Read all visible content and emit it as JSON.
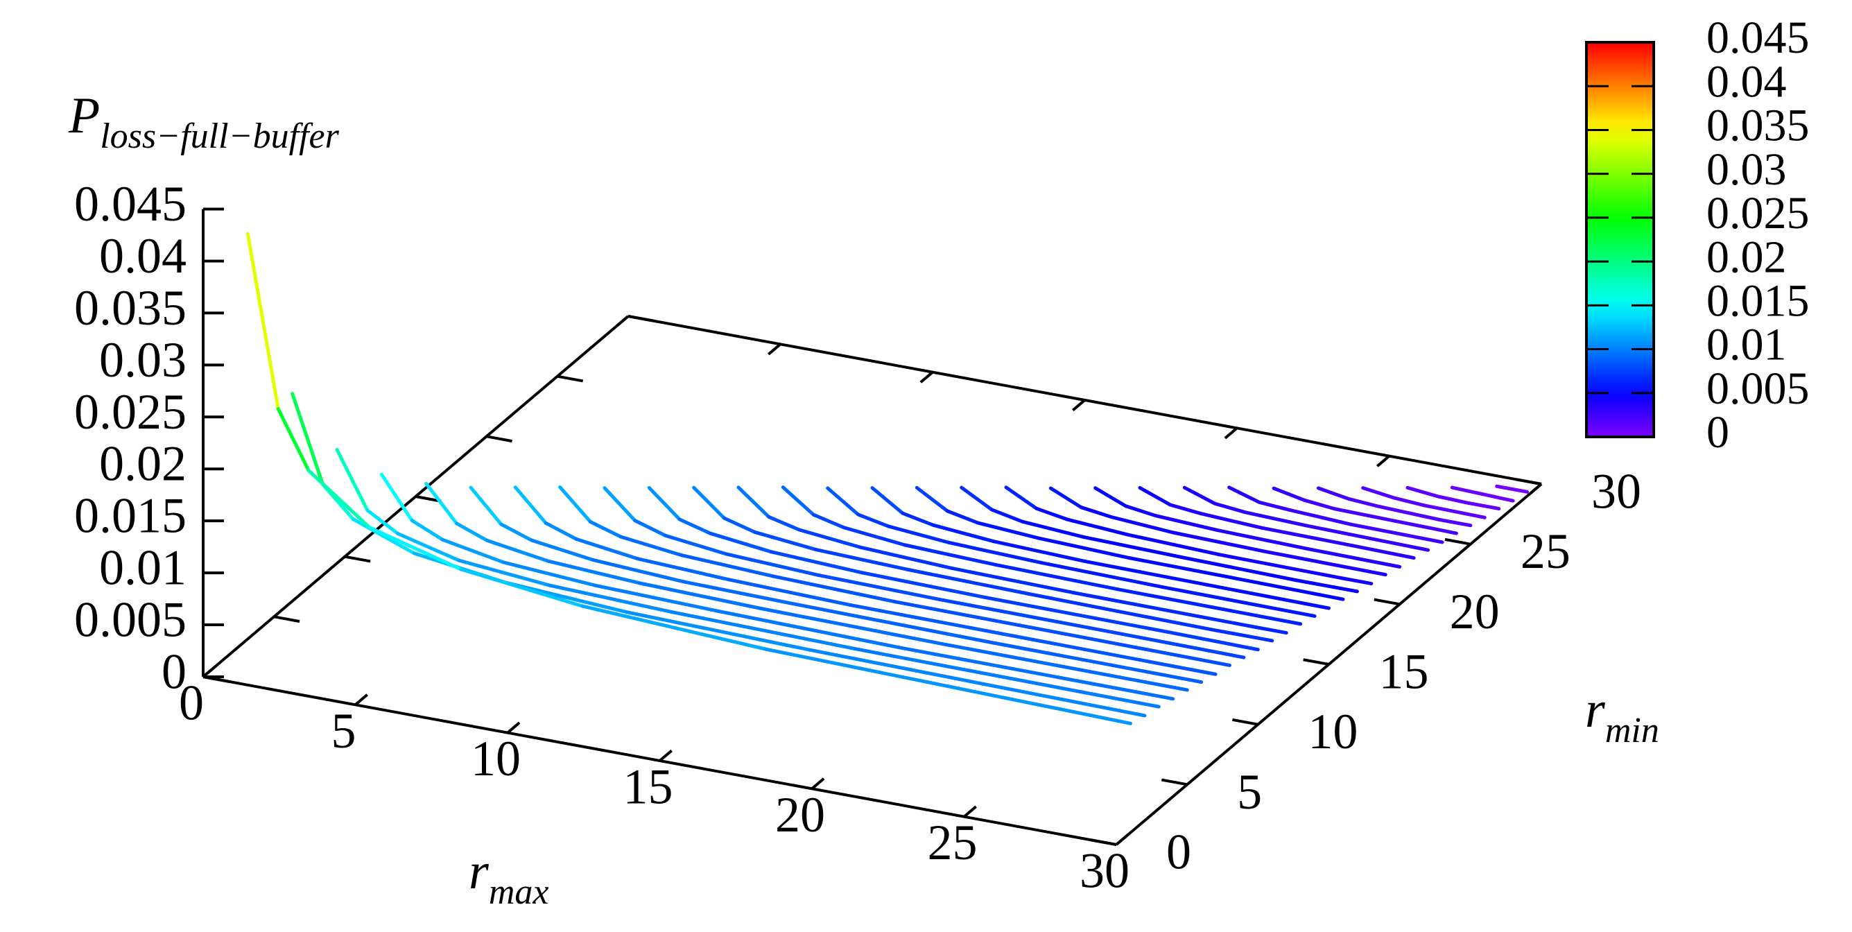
{
  "chart_data": {
    "type": "line3d",
    "zlabel": "P",
    "zlabel_subscript": "loss−full−buffer",
    "xlabel": "r",
    "xlabel_subscript": "max",
    "ylabel": "r",
    "ylabel_subscript": "min",
    "xlim": [
      0,
      30
    ],
    "xticks": [
      0,
      5,
      10,
      15,
      20,
      25,
      30
    ],
    "ylim": [
      0,
      30
    ],
    "yticks": [
      0,
      5,
      10,
      15,
      20,
      25,
      30
    ],
    "zlim": [
      0,
      0.045
    ],
    "zticks": [
      0,
      0.005,
      0.01,
      0.015,
      0.02,
      0.025,
      0.03,
      0.035,
      0.04,
      0.045
    ],
    "cblim": [
      0,
      0.045
    ],
    "cbticks": [
      0,
      0.005,
      0.01,
      0.015,
      0.02,
      0.025,
      0.03,
      0.035,
      0.04,
      0.045
    ],
    "colormap": "rainbow",
    "series": [
      {
        "y": 1,
        "x": [
          1,
          2,
          3,
          5,
          8,
          12,
          18,
          30
        ],
        "values": [
          0.042,
          0.0257,
          0.0203,
          0.0159,
          0.0135,
          0.0121,
          0.0112,
          0.0105
        ]
      },
      {
        "y": 2,
        "x": [
          2,
          3,
          4,
          6,
          9,
          13,
          19,
          30
        ],
        "values": [
          0.026,
          0.0178,
          0.015,
          0.0128,
          0.0116,
          0.0109,
          0.0105,
          0.0101
        ]
      },
      {
        "y": 3,
        "x": [
          3,
          4,
          5,
          7,
          10,
          14,
          20,
          30
        ],
        "values": [
          0.02,
          0.0147,
          0.013,
          0.0115,
          0.0107,
          0.0103,
          0.01,
          0.0098
        ]
      },
      {
        "y": 4,
        "x": [
          4,
          5,
          6,
          8,
          11,
          15,
          21,
          30
        ],
        "values": [
          0.017,
          0.0131,
          0.0118,
          0.0107,
          0.0101,
          0.0098,
          0.0095,
          0.0094
        ]
      },
      {
        "y": 5,
        "x": [
          5,
          6,
          7,
          9,
          12,
          16,
          22,
          30
        ],
        "values": [
          0.0155,
          0.0122,
          0.0111,
          0.0102,
          0.0097,
          0.0094,
          0.0092,
          0.0091
        ]
      },
      {
        "y": 6,
        "x": [
          6,
          7,
          8,
          10,
          13,
          17,
          23,
          30
        ],
        "values": [
          0.0145,
          0.0115,
          0.0105,
          0.0097,
          0.0092,
          0.009,
          0.0088,
          0.0087
        ]
      },
      {
        "y": 7,
        "x": [
          7,
          8,
          9,
          11,
          14,
          18,
          24,
          30
        ],
        "values": [
          0.0139,
          0.011,
          0.01,
          0.0092,
          0.0088,
          0.0085,
          0.0084,
          0.0083
        ]
      },
      {
        "y": 8,
        "x": [
          8,
          9,
          10,
          12,
          15,
          19,
          25,
          30
        ],
        "values": [
          0.0133,
          0.0105,
          0.0096,
          0.0089,
          0.0085,
          0.0082,
          0.0081,
          0.008
        ]
      },
      {
        "y": 9,
        "x": [
          9,
          10,
          11,
          13,
          16,
          20,
          26,
          30
        ],
        "values": [
          0.0126,
          0.01,
          0.0091,
          0.0084,
          0.008,
          0.0078,
          0.0077,
          0.0076
        ]
      },
      {
        "y": 10,
        "x": [
          10,
          11,
          12,
          14,
          17,
          21,
          27,
          30
        ],
        "values": [
          0.012,
          0.0095,
          0.0087,
          0.008,
          0.0076,
          0.0074,
          0.0073,
          0.0072
        ]
      },
      {
        "y": 11,
        "x": [
          11,
          12,
          13,
          15,
          18,
          22,
          28,
          30
        ],
        "values": [
          0.0114,
          0.009,
          0.0082,
          0.0076,
          0.0073,
          0.0071,
          0.0069,
          0.0069
        ]
      },
      {
        "y": 12,
        "x": [
          12,
          13,
          14,
          16,
          19,
          23,
          29,
          30
        ],
        "values": [
          0.0108,
          0.0085,
          0.0078,
          0.0072,
          0.0068,
          0.0066,
          0.0065,
          0.0065
        ]
      },
      {
        "y": 13,
        "x": [
          13,
          14,
          15,
          17,
          20,
          24,
          30
        ],
        "values": [
          0.0102,
          0.0081,
          0.0074,
          0.0068,
          0.0065,
          0.0063,
          0.0062
        ]
      },
      {
        "y": 14,
        "x": [
          14,
          15,
          16,
          18,
          21,
          25,
          30
        ],
        "values": [
          0.0095,
          0.0075,
          0.0069,
          0.0064,
          0.0061,
          0.0059,
          0.0058
        ]
      },
      {
        "y": 15,
        "x": [
          15,
          16,
          17,
          19,
          22,
          26,
          30
        ],
        "values": [
          0.0089,
          0.007,
          0.0064,
          0.0059,
          0.0056,
          0.0055,
          0.0054
        ]
      },
      {
        "y": 16,
        "x": [
          16,
          17,
          18,
          20,
          23,
          27,
          30
        ],
        "values": [
          0.0083,
          0.0066,
          0.006,
          0.0056,
          0.0053,
          0.0052,
          0.0051
        ]
      },
      {
        "y": 17,
        "x": [
          17,
          18,
          19,
          21,
          24,
          28,
          30
        ],
        "values": [
          0.0077,
          0.0061,
          0.0055,
          0.0051,
          0.0049,
          0.0047,
          0.0047
        ]
      },
      {
        "y": 18,
        "x": [
          18,
          19,
          20,
          22,
          25,
          29,
          30
        ],
        "values": [
          0.0071,
          0.0056,
          0.0051,
          0.0047,
          0.0044,
          0.0043,
          0.0043
        ]
      },
      {
        "y": 19,
        "x": [
          19,
          20,
          21,
          23,
          26,
          30
        ],
        "values": [
          0.0064,
          0.0051,
          0.0047,
          0.0043,
          0.0041,
          0.004
        ]
      },
      {
        "y": 20,
        "x": [
          20,
          21,
          22,
          24,
          27,
          30
        ],
        "values": [
          0.0058,
          0.0046,
          0.0042,
          0.0039,
          0.0037,
          0.0036
        ]
      },
      {
        "y": 21,
        "x": [
          21,
          22,
          23,
          25,
          28,
          30
        ],
        "values": [
          0.0052,
          0.0041,
          0.0038,
          0.0035,
          0.0034,
          0.0033
        ]
      },
      {
        "y": 22,
        "x": [
          22,
          23,
          24,
          26,
          30
        ],
        "values": [
          0.0046,
          0.0036,
          0.0033,
          0.0031,
          0.0029
        ]
      },
      {
        "y": 23,
        "x": [
          23,
          24,
          25,
          27,
          30
        ],
        "values": [
          0.004,
          0.0031,
          0.0029,
          0.0026,
          0.0025
        ]
      },
      {
        "y": 24,
        "x": [
          24,
          25,
          26,
          28,
          30
        ],
        "values": [
          0.0033,
          0.0027,
          0.0024,
          0.0023,
          0.0022
        ]
      },
      {
        "y": 25,
        "x": [
          25,
          26,
          27,
          29,
          30
        ],
        "values": [
          0.0027,
          0.0022,
          0.002,
          0.0018,
          0.0018
        ]
      },
      {
        "y": 26,
        "x": [
          26,
          27,
          28,
          30
        ],
        "values": [
          0.0021,
          0.0017,
          0.0015,
          0.0014
        ]
      },
      {
        "y": 27,
        "x": [
          27,
          28,
          29,
          30
        ],
        "values": [
          0.0015,
          0.0012,
          0.0011,
          0.0011
        ]
      },
      {
        "y": 28,
        "x": [
          28,
          29,
          30
        ],
        "values": [
          0.0009,
          0.0008,
          0.0007
        ]
      },
      {
        "y": 29,
        "x": [
          29,
          30
        ],
        "values": [
          0.0004,
          0.0004
        ]
      }
    ]
  }
}
